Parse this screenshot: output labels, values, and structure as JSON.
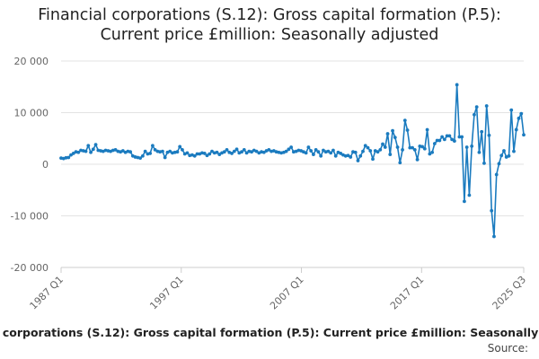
{
  "chart_data": {
    "type": "line",
    "title_lines": [
      "Financial corporations (S.12): Gross capital formation (P.5):",
      "Current price £million: Seasonally adjusted"
    ],
    "xlabel": "",
    "ylabel": "",
    "ylim": [
      -20000,
      20000
    ],
    "y_ticks": [
      "20 000",
      "10 000",
      "0",
      "-10 000",
      "-20 000"
    ],
    "y_tick_values": [
      20000,
      10000,
      0,
      -10000,
      -20000
    ],
    "x_ticks": [
      {
        "label": "1987 Q1",
        "t": 1987.0
      },
      {
        "label": "1997 Q1",
        "t": 1997.0
      },
      {
        "label": "2007 Q1",
        "t": 2007.0
      },
      {
        "label": "2017 Q1",
        "t": 2017.0
      },
      {
        "label": "2025 Q3",
        "t": 2025.5
      }
    ],
    "x_start": "1987 Q1",
    "x_end": "2025 Q3",
    "grid": true,
    "series": [
      {
        "name": "Financial corporations (S.12): Gross capital formation (P.5): Current price £million: Seasonally adjusted",
        "color": "#1b7bbf",
        "values": [
          1200,
          1100,
          1250,
          1300,
          1800,
          2100,
          2400,
          2300,
          2700,
          2600,
          2500,
          3600,
          2300,
          2900,
          3800,
          2700,
          2600,
          2500,
          2700,
          2600,
          2500,
          2700,
          2800,
          2500,
          2400,
          2600,
          2300,
          2500,
          2400,
          1600,
          1400,
          1300,
          1200,
          1600,
          2500,
          2000,
          2100,
          3600,
          2800,
          2500,
          2400,
          2500,
          1300,
          2300,
          2500,
          2200,
          2300,
          2400,
          3400,
          2800,
          2000,
          2200,
          1700,
          1800,
          1600,
          2000,
          2000,
          2200,
          2100,
          1700,
          2000,
          2500,
          2200,
          2300,
          1900,
          2200,
          2400,
          2800,
          2300,
          2100,
          2500,
          2900,
          2200,
          2400,
          2800,
          2200,
          2500,
          2400,
          2700,
          2500,
          2200,
          2400,
          2300,
          2600,
          2800,
          2500,
          2600,
          2400,
          2300,
          2200,
          2300,
          2500,
          2900,
          3300,
          2400,
          2500,
          2700,
          2600,
          2400,
          2200,
          3300,
          2600,
          1900,
          2800,
          2400,
          1600,
          2700,
          2400,
          2500,
          2200,
          2700,
          1600,
          2300,
          2100,
          1800,
          1600,
          1700,
          1400,
          2400,
          2300,
          700,
          1600,
          2500,
          3600,
          3200,
          2600,
          1000,
          2600,
          2400,
          2800,
          3900,
          3300,
          5900,
          1900,
          6500,
          5200,
          3300,
          300,
          2800,
          8500,
          6600,
          3200,
          3200,
          2800,
          900,
          3500,
          3400,
          3000,
          6700,
          2000,
          2300,
          4000,
          4600,
          4600,
          5300,
          4800,
          5500,
          5500,
          4800,
          4500,
          15400,
          5300,
          5300,
          -7200,
          3300,
          -6000,
          3500,
          9600,
          11100,
          2300,
          6300,
          200,
          11300,
          5600,
          -9000,
          -14000,
          -2000,
          100,
          1700,
          2600,
          1400,
          1600,
          10500,
          2500,
          6700,
          8900,
          9800,
          5700
        ]
      }
    ],
    "source_label": "Source:"
  }
}
